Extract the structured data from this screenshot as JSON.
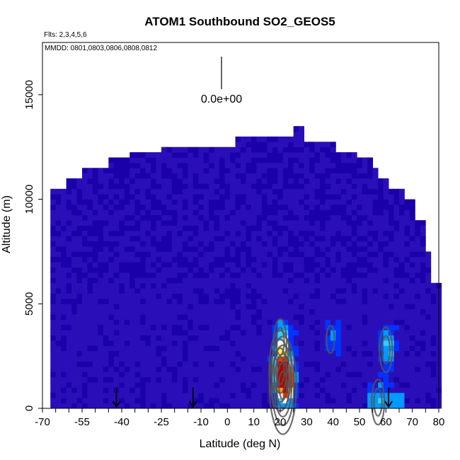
{
  "chart_data": {
    "type": "heatmap",
    "title": "ATOM1 Southbound SO2_GEOS5",
    "flights_note": "Flts: 2,3,4,5,6",
    "dates_note": "MMDD: 0801,0803,0806,0808,0812",
    "xlabel": "Latitude (deg N)",
    "ylabel": "Altitude (m)",
    "xlim": [
      -70,
      80
    ],
    "ylim": [
      0,
      17500
    ],
    "x_ticks": [
      -70,
      -55,
      -40,
      -25,
      -10,
      0,
      10,
      20,
      30,
      40,
      50,
      60,
      70,
      80
    ],
    "x_minor_ticks": [
      -65,
      -60,
      -50,
      -45,
      -35,
      -30,
      -20,
      -15,
      -5,
      5,
      15,
      25,
      35,
      45,
      55,
      65,
      75
    ],
    "y_ticks": [
      0,
      5000,
      10000,
      15000
    ],
    "scale_label": "0.0e+00",
    "grid": false,
    "legend": "none",
    "colormap": [
      "#1a00a8",
      "#2a0fb8",
      "#0033ff",
      "#0099ff",
      "#33ccff",
      "#ffffff",
      "#ffee55",
      "#ff9900",
      "#ff3300",
      "#b30000"
    ],
    "top_profile": [
      {
        "lat": -67,
        "top": 10500
      },
      {
        "lat": -61,
        "top": 11000
      },
      {
        "lat": -55,
        "top": 11500
      },
      {
        "lat": -46,
        "top": 12000
      },
      {
        "lat": -37,
        "top": 12100
      },
      {
        "lat": -25,
        "top": 12500
      },
      {
        "lat": 2,
        "top": 13000
      },
      {
        "lat": 18,
        "top": 13000
      },
      {
        "lat": 24,
        "top": 13500
      },
      {
        "lat": 28,
        "top": 12700
      },
      {
        "lat": 40,
        "top": 12100
      },
      {
        "lat": 48,
        "top": 11900
      },
      {
        "lat": 54,
        "top": 11500
      },
      {
        "lat": 56,
        "top": 11000
      },
      {
        "lat": 60,
        "top": 10500
      },
      {
        "lat": 66,
        "top": 10000
      },
      {
        "lat": 70,
        "top": 9000
      },
      {
        "lat": 74,
        "top": 7500
      },
      {
        "lat": 76,
        "top": 6000
      },
      {
        "lat": 79,
        "top": 6000
      }
    ],
    "hotspots": [
      {
        "lat": 20,
        "alt": 1800,
        "level": 0.7
      },
      {
        "lat": 21,
        "alt": 1100,
        "level": 1.0
      },
      {
        "lat": 20,
        "alt": 3200,
        "level": 0.4
      },
      {
        "lat": 60,
        "alt": 2800,
        "level": 0.35
      },
      {
        "lat": 57,
        "alt": 300,
        "level": 0.3
      },
      {
        "lat": 39,
        "alt": 3300,
        "level": 0.2
      }
    ],
    "arrows_lat": [
      -42,
      -13,
      61
    ]
  }
}
